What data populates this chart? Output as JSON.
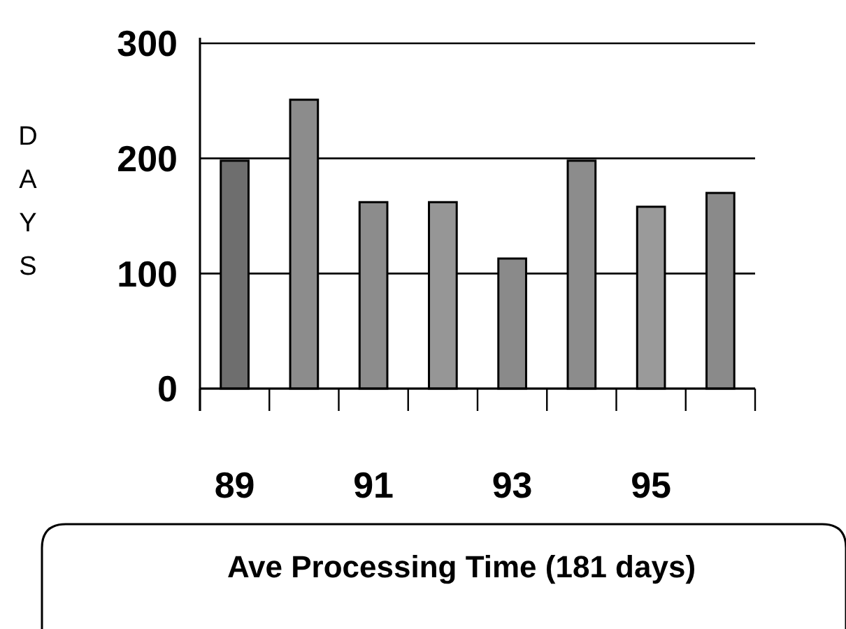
{
  "chart_data": {
    "type": "bar",
    "ylabel": "DAYS",
    "categories": [
      "89",
      null,
      "91",
      null,
      "93",
      null,
      "95",
      null
    ],
    "values": [
      198,
      251,
      162,
      162,
      113,
      198,
      158,
      170
    ],
    "colors": [
      "#6e6e6e",
      "#8c8c8c",
      "#8c8c8c",
      "#969696",
      "#8a8a8a",
      "#8c8c8c",
      "#9a9a9a",
      "#8a8a8a"
    ],
    "ylim": [
      0,
      300
    ],
    "yticks": [
      0,
      100,
      200,
      300
    ],
    "grid": "y",
    "annotations": [
      "Ave Processing Time (181 days)"
    ]
  }
}
